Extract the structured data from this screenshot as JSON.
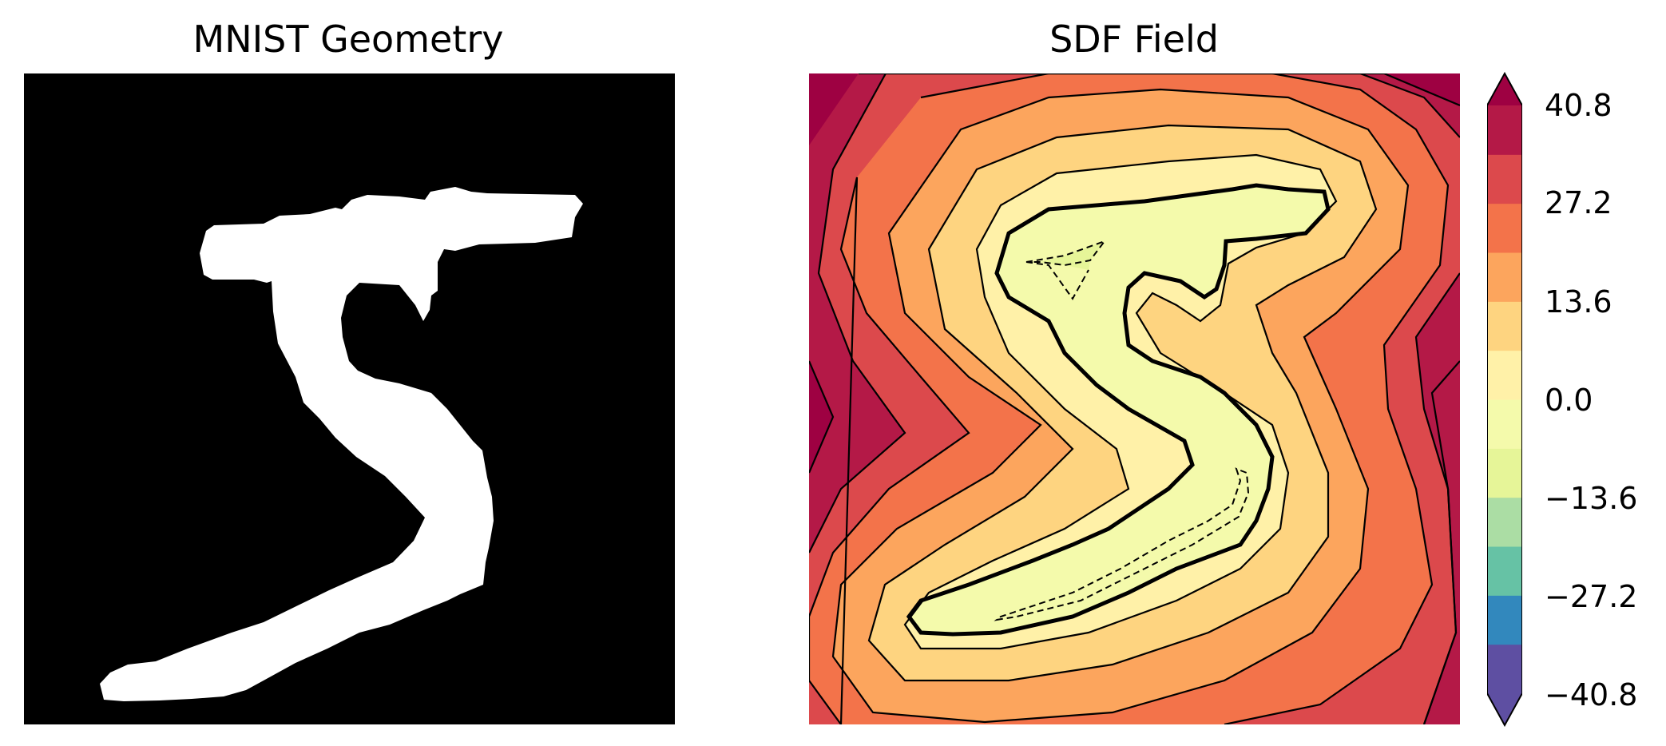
{
  "chart_data": [
    {
      "type": "heatmap",
      "title": "MNIST Geometry",
      "colormap": "gray",
      "description_colors": {
        "background": "#000000",
        "foreground": "#ffffff"
      },
      "axes": "off"
    },
    {
      "type": "contour",
      "title": "SDF Field",
      "colormap": "Spectral_r",
      "axes": "off",
      "colorbar": {
        "ticks": [
          "40.8",
          "27.2",
          "13.6",
          "0.0",
          "−13.6",
          "−27.2",
          "−40.8"
        ],
        "range": [
          -40.8,
          40.8
        ],
        "extend": "both",
        "levels": [
          -40.8,
          -34.0,
          -27.2,
          -20.4,
          -13.6,
          -6.8,
          0.0,
          6.8,
          13.6,
          20.4,
          27.2,
          34.0,
          40.8
        ],
        "colors": [
          "#5e4fa2",
          "#3288bd",
          "#66c2a5",
          "#abdda4",
          "#e6f598",
          "#f4faab",
          "#fff1a8",
          "#fed480",
          "#fca55d",
          "#f3734a",
          "#dc494c",
          "#b41947"
        ],
        "extend_colors": {
          "under": "#5e4fa2",
          "over": "#9e0142"
        }
      },
      "zero_level_contour": "bold",
      "negative_contours": "dashed"
    }
  ]
}
